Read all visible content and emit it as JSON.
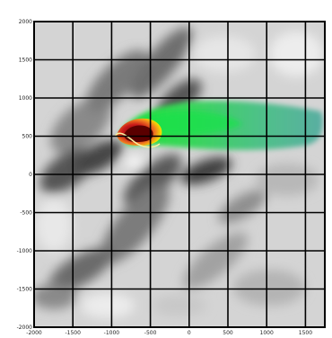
{
  "figure": {
    "y_tick_labels": [
      "2000",
      "1500",
      "1000",
      "500",
      "0",
      "-500",
      "-1000",
      "-1500",
      "-2000"
    ],
    "x_tick_labels": [
      "-2000",
      "-1500",
      "-1000",
      "-500",
      "0",
      "500",
      "1000",
      "1500"
    ],
    "grid": true,
    "x_range": [
      -2000,
      1750
    ],
    "y_range": [
      -2000,
      2000
    ],
    "background": "grayscale shaded-relief terrain",
    "overlay": "colored dispersion plume, dark red at source fading through yellow and green to teal",
    "colors": {
      "plume_core": "#8b0000",
      "plume_red": "#e53020",
      "plume_yellow": "#f2e600",
      "plume_green": "#2fd84a",
      "plume_teal": "#5aaea2",
      "grid": "#000000"
    }
  }
}
